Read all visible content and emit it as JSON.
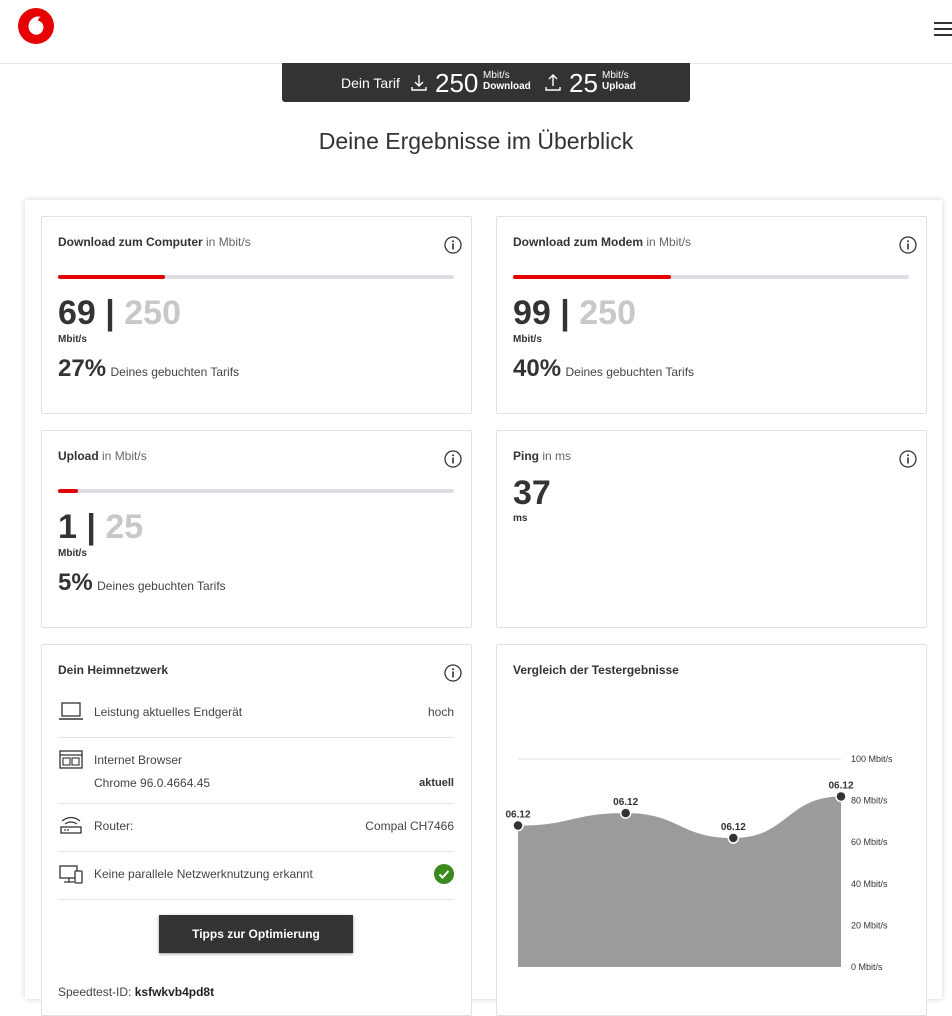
{
  "colors": {
    "accent": "#e60000",
    "dark": "#333333",
    "muted": "#c8c8c8",
    "track": "#dcdde6",
    "ok": "#3a8a1e"
  },
  "tarif": {
    "label": "Dein Tarif",
    "download_value": "250",
    "download_unit": "Mbit/s",
    "download_label": "Download",
    "upload_value": "25",
    "upload_unit": "Mbit/s",
    "upload_label": "Upload"
  },
  "page_title": "Deine Ergebnisse im Überblick",
  "cards": {
    "download_computer": {
      "title": "Download zum Computer",
      "unit_suffix": "in Mbit/s",
      "value": "69",
      "separator": "|",
      "max": "250",
      "unit": "Mbit/s",
      "percent": "27%",
      "percent_text": "Deines gebuchten Tarifs",
      "fill": 0.27
    },
    "download_modem": {
      "title": "Download zum Modem",
      "unit_suffix": "in Mbit/s",
      "value": "99",
      "separator": "|",
      "max": "250",
      "unit": "Mbit/s",
      "percent": "40%",
      "percent_text": "Deines gebuchten Tarifs",
      "fill": 0.4
    },
    "upload": {
      "title": "Upload",
      "unit_suffix": "in Mbit/s",
      "value": "1",
      "separator": "|",
      "max": "25",
      "unit": "Mbit/s",
      "percent": "5%",
      "percent_text": "Deines gebuchten Tarifs",
      "fill": 0.05
    },
    "ping": {
      "title": "Ping",
      "unit_suffix": "in ms",
      "value": "37",
      "unit": "ms"
    }
  },
  "heimnetz": {
    "title": "Dein Heimnetzwerk",
    "rows": [
      {
        "icon": "laptop-icon",
        "label": "Leistung aktuelles Endgerät",
        "value": "hoch"
      },
      {
        "icon": "browser-icon",
        "label": "Internet Browser",
        "sub": "Chrome 96.0.4664.45",
        "value": "aktuell"
      },
      {
        "icon": "router-icon",
        "label": "Router:",
        "value": "Compal CH7466"
      },
      {
        "icon": "devices-icon",
        "label": "Keine parallele Netzwerknutzung erkannt",
        "value_icon": "check-circle-icon"
      }
    ],
    "button": "Tipps zur Optimierung",
    "speedtest_label": "Speedtest-ID:",
    "speedtest_id": "ksfwkvb4pd8t"
  },
  "chart_data": {
    "type": "area",
    "title": "Vergleich der Testergebnisse",
    "categories": [
      "06.12",
      "06.12",
      "06.12",
      "06.12"
    ],
    "series": [
      {
        "values": [
          68,
          74,
          62,
          82
        ]
      }
    ],
    "ylim": [
      0,
      100
    ],
    "yticks": [
      "0 Mbit/s",
      "20 Mbit/s",
      "40 Mbit/s",
      "60 Mbit/s",
      "80 Mbit/s",
      "100 Mbit/s"
    ],
    "ytick_values": [
      0,
      20,
      40,
      60,
      80,
      100
    ],
    "fill_color": "#9b9b9b",
    "grid": false,
    "axis_position": "right"
  }
}
